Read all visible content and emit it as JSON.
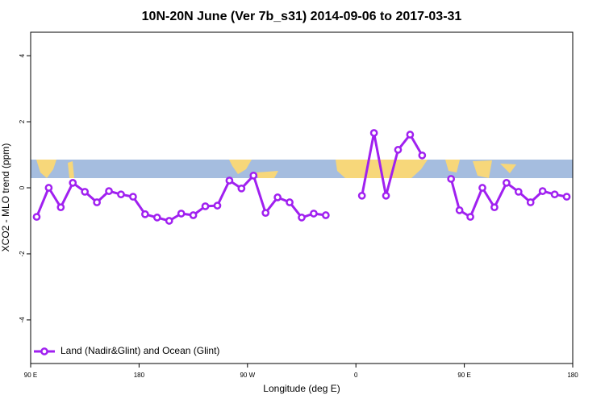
{
  "chart_data": {
    "type": "line",
    "title": "10N-20N June (Ver 7b_s31)   2014-09-06 to 2017-03-31",
    "x_label": "Longitude (deg E)",
    "y_label": "XCO2 - MLO trend (ppm)",
    "x": [
      95,
      105,
      115,
      125,
      135,
      145,
      155,
      165,
      175,
      185,
      195,
      205,
      215,
      225,
      235,
      245,
      255,
      265,
      275,
      285,
      295,
      305,
      315,
      325,
      335,
      345,
      355,
      365,
      375,
      385,
      395,
      405,
      415,
      425,
      439,
      446,
      455,
      465,
      475,
      485,
      495,
      505,
      515,
      525,
      535
    ],
    "series": [
      {
        "name": "Land (Nadir&Glint) and Ocean (Glint)",
        "color": "#a020f0",
        "values": [
          -0.88,
          0.0,
          -0.59,
          0.15,
          -0.12,
          -0.44,
          -0.1,
          -0.2,
          -0.27,
          -0.8,
          -0.9,
          -1.0,
          -0.78,
          -0.83,
          -0.56,
          -0.54,
          0.22,
          -0.02,
          0.37,
          -0.76,
          -0.29,
          -0.44,
          -0.9,
          -0.78,
          -0.83,
          null,
          null,
          -0.24,
          1.66,
          -0.24,
          1.15,
          1.61,
          0.98,
          null,
          0.27,
          -0.68,
          -0.88,
          0.0,
          -0.59,
          0.15,
          -0.12,
          -0.44,
          -0.1,
          -0.2,
          -0.27
        ]
      }
    ],
    "xlim": [
      90,
      540
    ],
    "ylim": [
      -5.32,
      4.71
    ],
    "xticks": [
      {
        "value": 90,
        "label": "90 E"
      },
      180,
      {
        "value": 270,
        "label": "90 W"
      },
      {
        "value": 360,
        "label": "0"
      },
      {
        "value": 450,
        "label": "90 E"
      },
      {
        "value": 540,
        "label": "180"
      }
    ],
    "yticks": [
      -4,
      -2,
      0,
      2,
      4
    ],
    "legend": "bottom-left"
  }
}
